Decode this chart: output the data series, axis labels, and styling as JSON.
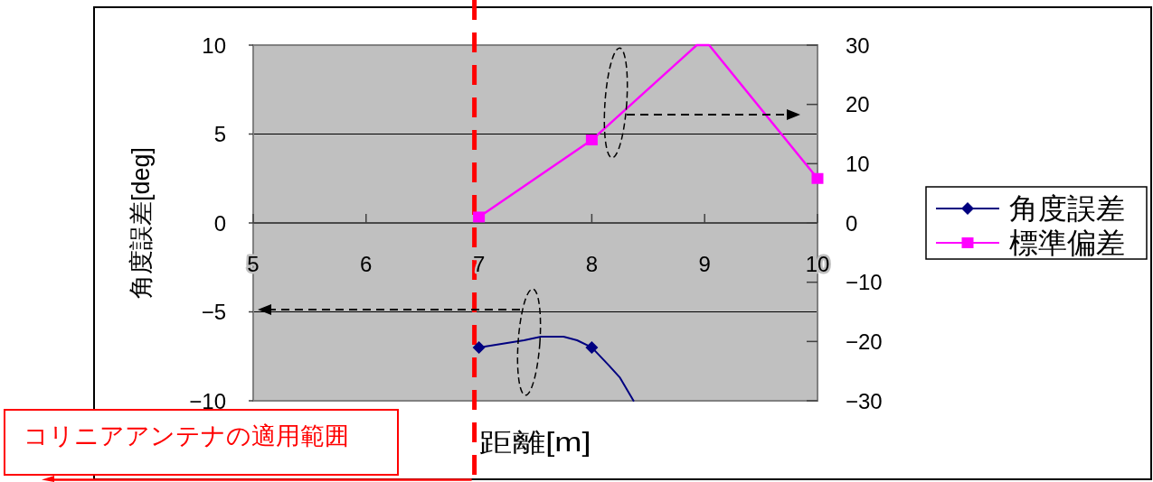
{
  "chart_data": {
    "type": "line",
    "xlabel": "距離[m]",
    "ylabel": "角度誤差[deg]",
    "xlim": [
      5,
      10
    ],
    "xticks": [
      5,
      6,
      7,
      8,
      9,
      10
    ],
    "ylim": [
      -10,
      10
    ],
    "yticks": [
      -10,
      -5,
      0,
      5,
      10
    ],
    "y2lim": [
      -30,
      30
    ],
    "y2ticks": [
      -30,
      -20,
      -10,
      0,
      10,
      20,
      30
    ],
    "grid": "y",
    "legend": "right",
    "series": [
      {
        "name": "角度誤差",
        "color": "#000080",
        "x": [
          7,
          7.2,
          7.4,
          7.55,
          7.65,
          7.75,
          7.87,
          8,
          8.15,
          8.25,
          8.37
        ],
        "values": [
          -7,
          -6.8,
          -6.6,
          -6.4,
          -6.4,
          -6.4,
          -6.6,
          -7,
          -8,
          -8.7,
          -10
        ]
      },
      {
        "type": "scatter",
        "color": "#000080",
        "marker": "diamond",
        "x": [
          7,
          8
        ],
        "values": [
          -7,
          -7
        ]
      },
      {
        "name": "標準偏差",
        "color": "#ff00ff",
        "axis": "y2",
        "x": [
          7,
          8,
          8.93,
          9.04,
          10
        ],
        "values": [
          1,
          14,
          30,
          30,
          7.5
        ]
      },
      {
        "type": "scatter",
        "color": "#ff00ff",
        "marker": "square",
        "axis": "y2",
        "x": [
          7,
          8,
          10
        ],
        "values": [
          1,
          14,
          7.5
        ]
      }
    ],
    "ref_lines": [
      {
        "axis": "x",
        "value": 6.96,
        "label": "コリニアアンテナの適用範囲",
        "color": "#ff0000",
        "line_style": "dashed"
      }
    ]
  }
}
